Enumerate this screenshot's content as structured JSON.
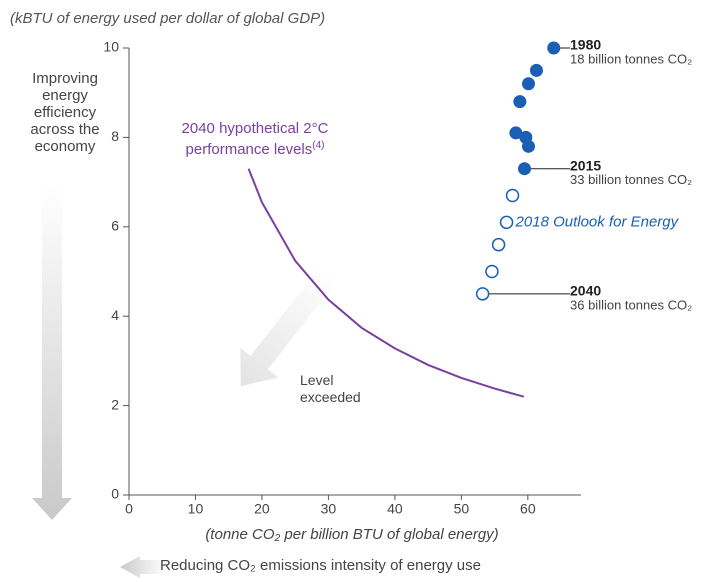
{
  "chart_data": {
    "type": "scatter",
    "y_axis_label": "(kBTU of energy used per dollar of global GDP)",
    "x_axis_label": "(tonne CO₂ per billion BTU of global energy)",
    "y_direction_label": "Improving energy efficiency across the economy",
    "x_direction_label": "Reducing CO₂ emissions intensity of energy use",
    "xlim": [
      0,
      68
    ],
    "ylim": [
      0,
      10
    ],
    "xticks": [
      0,
      10,
      20,
      30,
      40,
      50,
      60
    ],
    "yticks": [
      0,
      2,
      4,
      6,
      8,
      10
    ],
    "grid": false,
    "annotation": "Level exceeded",
    "series": [
      {
        "style": "filled",
        "color": "#1a5fb4",
        "x": [
          63.9,
          61.3,
          60.1,
          58.8,
          58.2,
          59.7,
          60.1,
          59.5
        ],
        "values": [
          10.0,
          9.5,
          9.2,
          8.8,
          8.1,
          8.0,
          7.8,
          7.3
        ],
        "labels": [
          "1980",
          null,
          null,
          null,
          null,
          null,
          null,
          "2015"
        ],
        "notes": [
          "18 billion tonnes CO₂",
          null,
          null,
          null,
          null,
          null,
          null,
          "33 billion tonnes CO₂"
        ]
      },
      {
        "name": "2018 Outlook for Energy",
        "style": "open",
        "color": "#1a5fb4",
        "x": [
          57.7,
          56.8,
          55.6,
          54.6,
          53.2
        ],
        "values": [
          6.7,
          6.1,
          5.6,
          5.0,
          4.5
        ],
        "labels": [
          null,
          null,
          null,
          null,
          "2040"
        ],
        "notes": [
          null,
          null,
          null,
          null,
          "36 billion tonnes CO₂"
        ]
      },
      {
        "name": "2040 hypothetical 2°C performance levels",
        "footnote": "(4)",
        "style": "line",
        "color": "#7b3f9e",
        "x": [
          18,
          20,
          25,
          30,
          35,
          40,
          45,
          50,
          55,
          59.4
        ],
        "values": [
          7.3,
          6.55,
          5.24,
          4.37,
          3.74,
          3.28,
          2.91,
          2.62,
          2.38,
          2.2
        ]
      }
    ]
  }
}
